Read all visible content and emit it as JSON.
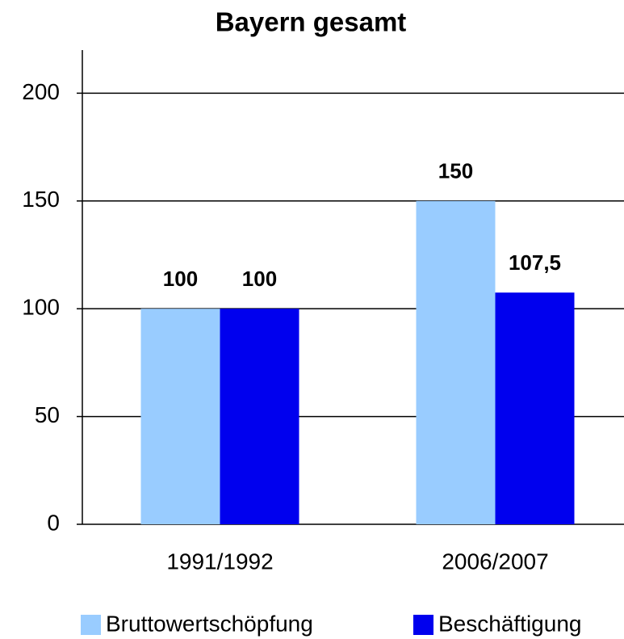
{
  "chart_data": {
    "type": "bar",
    "title": "Bayern gesamt",
    "categories": [
      "1991/1992",
      "2006/2007"
    ],
    "series": [
      {
        "name": "Bruttowertschöpfung",
        "color": "#99ccff",
        "values": [
          100,
          150
        ]
      },
      {
        "name": "Beschäftigung",
        "color": "#0000ee",
        "values": [
          100,
          107.5
        ],
        "value_labels": [
          "100",
          "107,5"
        ]
      }
    ],
    "ylim": [
      0,
      220
    ],
    "yticks": [
      0,
      50,
      100,
      150,
      200
    ],
    "grid": true,
    "legend": "bottom"
  }
}
